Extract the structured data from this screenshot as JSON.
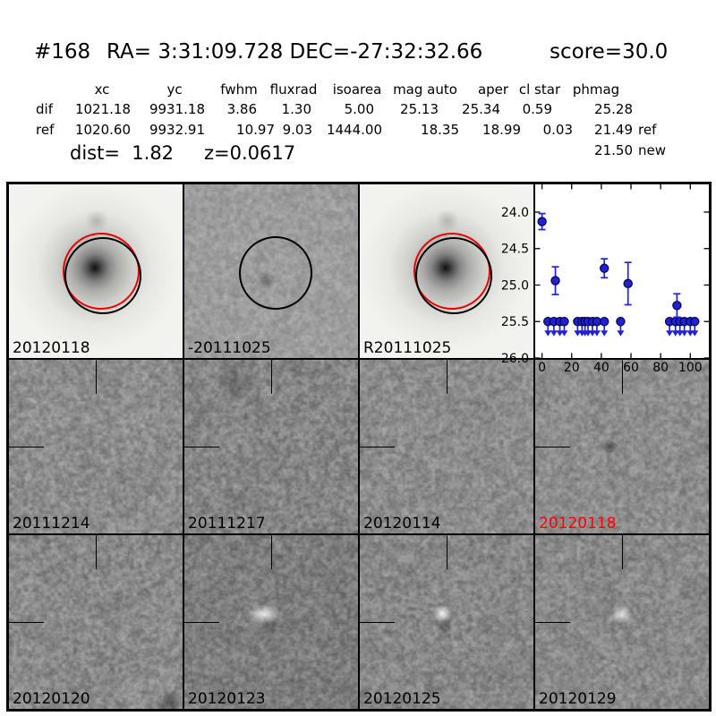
{
  "header": {
    "number": "#168",
    "radec": "RA= 3:31:09.728 DEC=-27:32:32.66",
    "score": "score=30.0"
  },
  "table": {
    "columns": [
      "xc",
      "yc",
      "fwhm",
      "fluxrad",
      "isoarea",
      "mag auto",
      "aper",
      "cl star",
      "phmag"
    ],
    "rows": [
      {
        "label": "dif",
        "values": [
          "1021.18",
          "9931.18",
          "3.86",
          "1.30",
          "5.00",
          "25.13",
          "25.34",
          "0.59",
          "25.28"
        ],
        "suffix": ""
      },
      {
        "label": "ref",
        "values": [
          "1020.60",
          "9932.91",
          "10.97",
          "9.03",
          "1444.00",
          "18.35",
          "18.99",
          "0.03",
          "21.49"
        ],
        "suffix": "ref"
      }
    ],
    "extra": {
      "value": "21.50",
      "suffix": "new"
    },
    "dist": "dist=  1.82",
    "z": "z=0.0617"
  },
  "panels": {
    "items": [
      {
        "label": "20120118",
        "label_color": "#000000",
        "kind": "new-image",
        "overlays": {
          "red_circle": true,
          "black_circle": true
        }
      },
      {
        "label": "-20111025",
        "label_color": "#000000",
        "kind": "negative-ref-image",
        "overlays": {
          "black_circle": true
        }
      },
      {
        "label": "R20111025",
        "label_color": "#000000",
        "kind": "ref-image",
        "overlays": {
          "red_circle": true,
          "black_circle": true
        }
      },
      {
        "label": "",
        "label_color": "#000000",
        "kind": "lightcurve",
        "overlays": {}
      },
      {
        "label": "20111214",
        "label_color": "#000000",
        "kind": "diff-image",
        "overlays": {
          "crosshair": true
        }
      },
      {
        "label": "20111217",
        "label_color": "#000000",
        "kind": "diff-image",
        "overlays": {
          "crosshair": true
        }
      },
      {
        "label": "20120114",
        "label_color": "#000000",
        "kind": "diff-image",
        "overlays": {
          "crosshair": true
        }
      },
      {
        "label": "20120118",
        "label_color": "#ff0000",
        "kind": "diff-image",
        "overlays": {
          "crosshair": true
        }
      },
      {
        "label": "20120120",
        "label_color": "#000000",
        "kind": "diff-image",
        "overlays": {
          "crosshair": true
        }
      },
      {
        "label": "20120123",
        "label_color": "#000000",
        "kind": "diff-image",
        "overlays": {
          "crosshair": true
        }
      },
      {
        "label": "20120125",
        "label_color": "#000000",
        "kind": "diff-image",
        "overlays": {
          "crosshair": true
        }
      },
      {
        "label": "20120129",
        "label_color": "#000000",
        "kind": "diff-image",
        "overlays": {
          "crosshair": true
        }
      }
    ]
  },
  "chart_data": {
    "type": "scatter",
    "title": "",
    "xlabel": "",
    "ylabel": "",
    "xlim": [
      -4.6,
      112.5
    ],
    "ylim": [
      23.62,
      26.0
    ],
    "y_inverted": true,
    "grid": false,
    "xticks": [
      0,
      20,
      40,
      60,
      80,
      100
    ],
    "yticks": [
      24.0,
      24.5,
      25.0,
      25.5,
      26.0
    ],
    "marker_color": "#2121cd",
    "marker_edge": "#00004d",
    "line_color": "#2222dd",
    "series": [
      {
        "name": "detections",
        "marker": "circle-errorbar",
        "points": [
          {
            "x": 0,
            "y": 24.13,
            "err": 0.11
          },
          {
            "x": 9,
            "y": 24.94,
            "err": 0.19
          },
          {
            "x": 42,
            "y": 24.77,
            "err": 0.13
          },
          {
            "x": 58,
            "y": 24.98,
            "err": 0.29
          },
          {
            "x": 91,
            "y": 25.28,
            "err": 0.16
          }
        ]
      },
      {
        "name": "upper_limits",
        "marker": "circle-down-arrow",
        "limit_y": 25.5,
        "x": [
          4,
          8,
          12,
          15,
          24,
          27,
          29,
          31,
          34,
          37,
          42,
          53,
          86,
          90,
          93,
          96,
          100,
          103
        ]
      }
    ]
  }
}
